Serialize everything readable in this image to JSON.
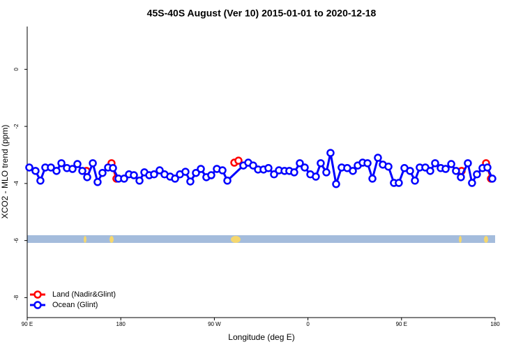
{
  "chart_data": {
    "type": "line",
    "title": "45S-40S August (Ver 10)   2015-01-01 to 2020-12-18",
    "x_label": "Longitude (deg E)",
    "y_label": "XCO2 - MLO trend (ppm)",
    "xlim": [
      90,
      540
    ],
    "xticks": [
      {
        "value": 90,
        "label": "90 E"
      },
      {
        "value": 180,
        "label": "180"
      },
      {
        "value": 270,
        "label": "90 W"
      },
      {
        "value": 360,
        "label": "0"
      },
      {
        "value": 450,
        "label": "90 E"
      },
      {
        "value": 540,
        "label": "180"
      }
    ],
    "ylim": [
      -8.7,
      1.5
    ],
    "yticks": [
      0,
      -2,
      -4,
      -6,
      -8
    ],
    "legend_position": "bottom-left",
    "series": [
      {
        "name": "Land (Nadir&Glint)",
        "color": "#ff0000",
        "x": [
          147.0,
          null,
          171.1,
          175.8,
          null,
          289.2,
          293.2,
          null,
          507.8,
          null,
          531.3,
          536.0
        ],
        "values": [
          -3.56,
          null,
          -3.29,
          -3.83,
          null,
          -3.27,
          -3.2,
          null,
          -3.56,
          null,
          -3.29,
          -3.83
        ]
      },
      {
        "name": "Ocean (Glint)",
        "color": "#0000ff",
        "x": [
          92.0,
          98.0,
          102.7,
          107.4,
          112.8,
          118.2,
          122.9,
          128.2,
          133.6,
          138.3,
          143.0,
          147.7,
          153.1,
          157.7,
          162.4,
          167.8,
          172.5,
          177.8,
          183.2,
          187.9,
          192.6,
          198.0,
          202.7,
          207.4,
          212.0,
          217.4,
          222.1,
          227.5,
          232.2,
          236.9,
          242.2,
          246.9,
          252.3,
          257.0,
          262.3,
          267.0,
          272.4,
          277.8,
          282.5,
          297.9,
          302.6,
          307.3,
          312.0,
          317.3,
          322.0,
          327.4,
          332.1,
          337.5,
          342.1,
          346.8,
          352.2,
          356.9,
          362.3,
          367.6,
          372.3,
          377.7,
          381.7,
          387.1,
          392.4,
          397.8,
          403.2,
          407.9,
          412.6,
          417.3,
          422.0,
          427.3,
          432.0,
          437.4,
          442.7,
          447.4,
          452.8,
          458.2,
          462.9,
          467.5,
          472.9,
          477.6,
          482.3,
          487.7,
          492.4,
          497.8,
          502.4,
          507.1,
          513.8,
          517.8,
          522.5,
          527.9,
          532.6,
          537.3
        ],
        "values": [
          -3.44,
          -3.56,
          -3.9,
          -3.44,
          -3.44,
          -3.56,
          -3.29,
          -3.46,
          -3.49,
          -3.32,
          -3.56,
          -3.78,
          -3.29,
          -3.95,
          -3.63,
          -3.44,
          -3.46,
          -3.83,
          -3.83,
          -3.68,
          -3.71,
          -3.9,
          -3.61,
          -3.71,
          -3.68,
          -3.54,
          -3.68,
          -3.76,
          -3.83,
          -3.68,
          -3.59,
          -3.93,
          -3.63,
          -3.49,
          -3.78,
          -3.71,
          -3.49,
          -3.54,
          -3.9,
          -3.37,
          -3.27,
          -3.37,
          -3.51,
          -3.51,
          -3.46,
          -3.68,
          -3.54,
          -3.56,
          -3.56,
          -3.61,
          -3.29,
          -3.44,
          -3.68,
          -3.76,
          -3.29,
          -3.61,
          -2.93,
          -4.02,
          -3.44,
          -3.46,
          -3.56,
          -3.37,
          -3.27,
          -3.29,
          -3.83,
          -3.1,
          -3.34,
          -3.41,
          -3.98,
          -3.98,
          -3.46,
          -3.56,
          -3.9,
          -3.44,
          -3.44,
          -3.56,
          -3.29,
          -3.46,
          -3.49,
          -3.32,
          -3.56,
          -3.78,
          -3.29,
          -3.98,
          -3.68,
          -3.46,
          -3.44,
          -3.83
        ]
      }
    ]
  }
}
